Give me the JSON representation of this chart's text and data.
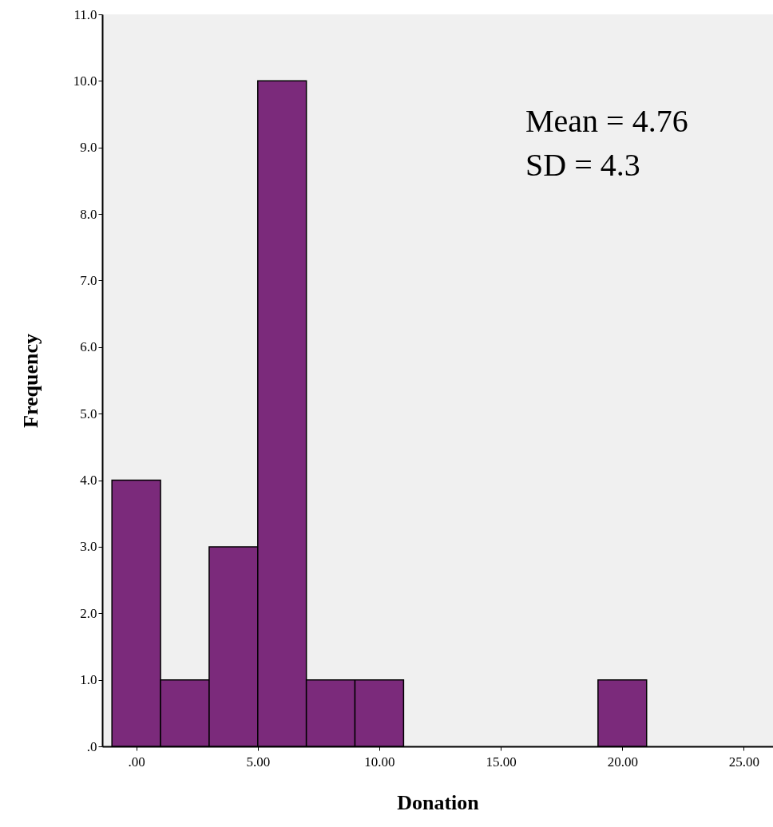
{
  "chart_data": {
    "type": "histogram",
    "xlabel": "Donation",
    "ylabel": "Frequency",
    "bins": [
      -1,
      1,
      3,
      5,
      7,
      9,
      11,
      13,
      15,
      17,
      19,
      21
    ],
    "values": [
      4,
      1,
      3,
      10,
      1,
      1,
      0,
      0,
      0,
      0,
      1
    ],
    "color": "#7b2a7b",
    "xlim": [
      -1.4,
      26.2
    ],
    "xticks": [
      {
        "value": 0,
        "label": ".00"
      },
      {
        "value": 5,
        "label": "5.00"
      },
      {
        "value": 10,
        "label": "10.00"
      },
      {
        "value": 15,
        "label": "15.00"
      },
      {
        "value": 20,
        "label": "20.00"
      },
      {
        "value": 25,
        "label": "25.00"
      }
    ],
    "ylim": [
      0,
      11
    ],
    "yticks": [
      {
        "value": 0,
        "label": ".0"
      },
      {
        "value": 1,
        "label": "1.0"
      },
      {
        "value": 2,
        "label": "2.0"
      },
      {
        "value": 3,
        "label": "3.0"
      },
      {
        "value": 4,
        "label": "4.0"
      },
      {
        "value": 5,
        "label": "5.0"
      },
      {
        "value": 6,
        "label": "6.0"
      },
      {
        "value": 7,
        "label": "7.0"
      },
      {
        "value": 8,
        "label": "8.0"
      },
      {
        "value": 9,
        "label": "9.0"
      },
      {
        "value": 10,
        "label": "10.0"
      },
      {
        "value": 11,
        "label": "11.0"
      }
    ],
    "grid": false,
    "annotations": [
      "Mean = 4.76",
      "SD = 4.3"
    ]
  }
}
